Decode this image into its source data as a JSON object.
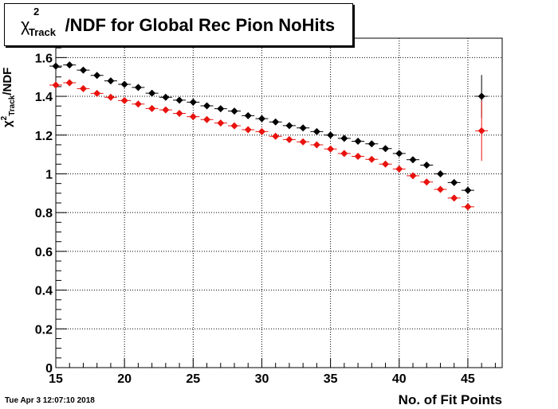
{
  "title": {
    "chi": "χ",
    "sup": "2",
    "sub": "Track",
    "rest": "/NDF for Global Rec Pion NoHits"
  },
  "xlabel": "No. of Fit Points",
  "ylabel": {
    "chi": "χ",
    "sup": "2",
    "sub": "Track",
    "rest": "/NDF"
  },
  "datestamp": "Tue Apr  3 12:07:10 2018",
  "chart_data": {
    "type": "scatter",
    "xlim": [
      15,
      47.5
    ],
    "ylim": [
      0,
      1.7
    ],
    "grid": true,
    "x_ticks": [
      15,
      20,
      25,
      30,
      35,
      40,
      45
    ],
    "x_tick_labels": [
      "15",
      "20",
      "25",
      "30",
      "35",
      "40",
      "45"
    ],
    "y_ticks": [
      0,
      0.2,
      0.4,
      0.6,
      0.8,
      1.0,
      1.2,
      1.4,
      1.6
    ],
    "y_tick_labels": [
      "0",
      "0.2",
      "0.4",
      "0.6",
      "0.8",
      "1",
      "1.2",
      "1.4",
      "1.6"
    ],
    "series": [
      {
        "color": "#000000",
        "x": [
          15,
          16,
          17,
          18,
          19,
          20,
          21,
          22,
          23,
          24,
          25,
          26,
          27,
          28,
          29,
          30,
          31,
          32,
          33,
          34,
          35,
          36,
          37,
          38,
          39,
          40,
          41,
          42,
          43,
          44,
          45,
          46
        ],
        "y": [
          1.556,
          1.562,
          1.535,
          1.508,
          1.48,
          1.462,
          1.446,
          1.416,
          1.395,
          1.38,
          1.37,
          1.351,
          1.336,
          1.324,
          1.3,
          1.285,
          1.268,
          1.249,
          1.237,
          1.218,
          1.2,
          1.183,
          1.168,
          1.155,
          1.13,
          1.105,
          1.073,
          1.045,
          1.0,
          0.955,
          0.915,
          1.4
        ],
        "yerr": [
          0.003,
          0.003,
          0.003,
          0.003,
          0.003,
          0.003,
          0.003,
          0.003,
          0.003,
          0.003,
          0.003,
          0.003,
          0.003,
          0.003,
          0.003,
          0.003,
          0.003,
          0.003,
          0.003,
          0.003,
          0.003,
          0.003,
          0.003,
          0.003,
          0.003,
          0.004,
          0.004,
          0.005,
          0.006,
          0.008,
          0.012,
          0.11
        ]
      },
      {
        "color": "#e8130e",
        "x": [
          15,
          16,
          17,
          18,
          19,
          20,
          21,
          22,
          23,
          24,
          25,
          26,
          27,
          28,
          29,
          30,
          31,
          32,
          33,
          34,
          35,
          36,
          37,
          38,
          39,
          40,
          41,
          42,
          43,
          44,
          45,
          46
        ],
        "y": [
          1.458,
          1.47,
          1.44,
          1.415,
          1.395,
          1.378,
          1.36,
          1.337,
          1.33,
          1.312,
          1.295,
          1.28,
          1.262,
          1.248,
          1.228,
          1.218,
          1.194,
          1.177,
          1.165,
          1.15,
          1.128,
          1.105,
          1.09,
          1.075,
          1.05,
          1.025,
          0.99,
          0.958,
          0.92,
          0.875,
          0.83,
          1.222
        ],
        "yerr": [
          0.003,
          0.003,
          0.003,
          0.003,
          0.003,
          0.003,
          0.003,
          0.003,
          0.003,
          0.003,
          0.003,
          0.003,
          0.003,
          0.003,
          0.003,
          0.003,
          0.003,
          0.003,
          0.003,
          0.003,
          0.003,
          0.003,
          0.003,
          0.003,
          0.003,
          0.004,
          0.004,
          0.005,
          0.006,
          0.008,
          0.012,
          0.155
        ]
      }
    ]
  }
}
